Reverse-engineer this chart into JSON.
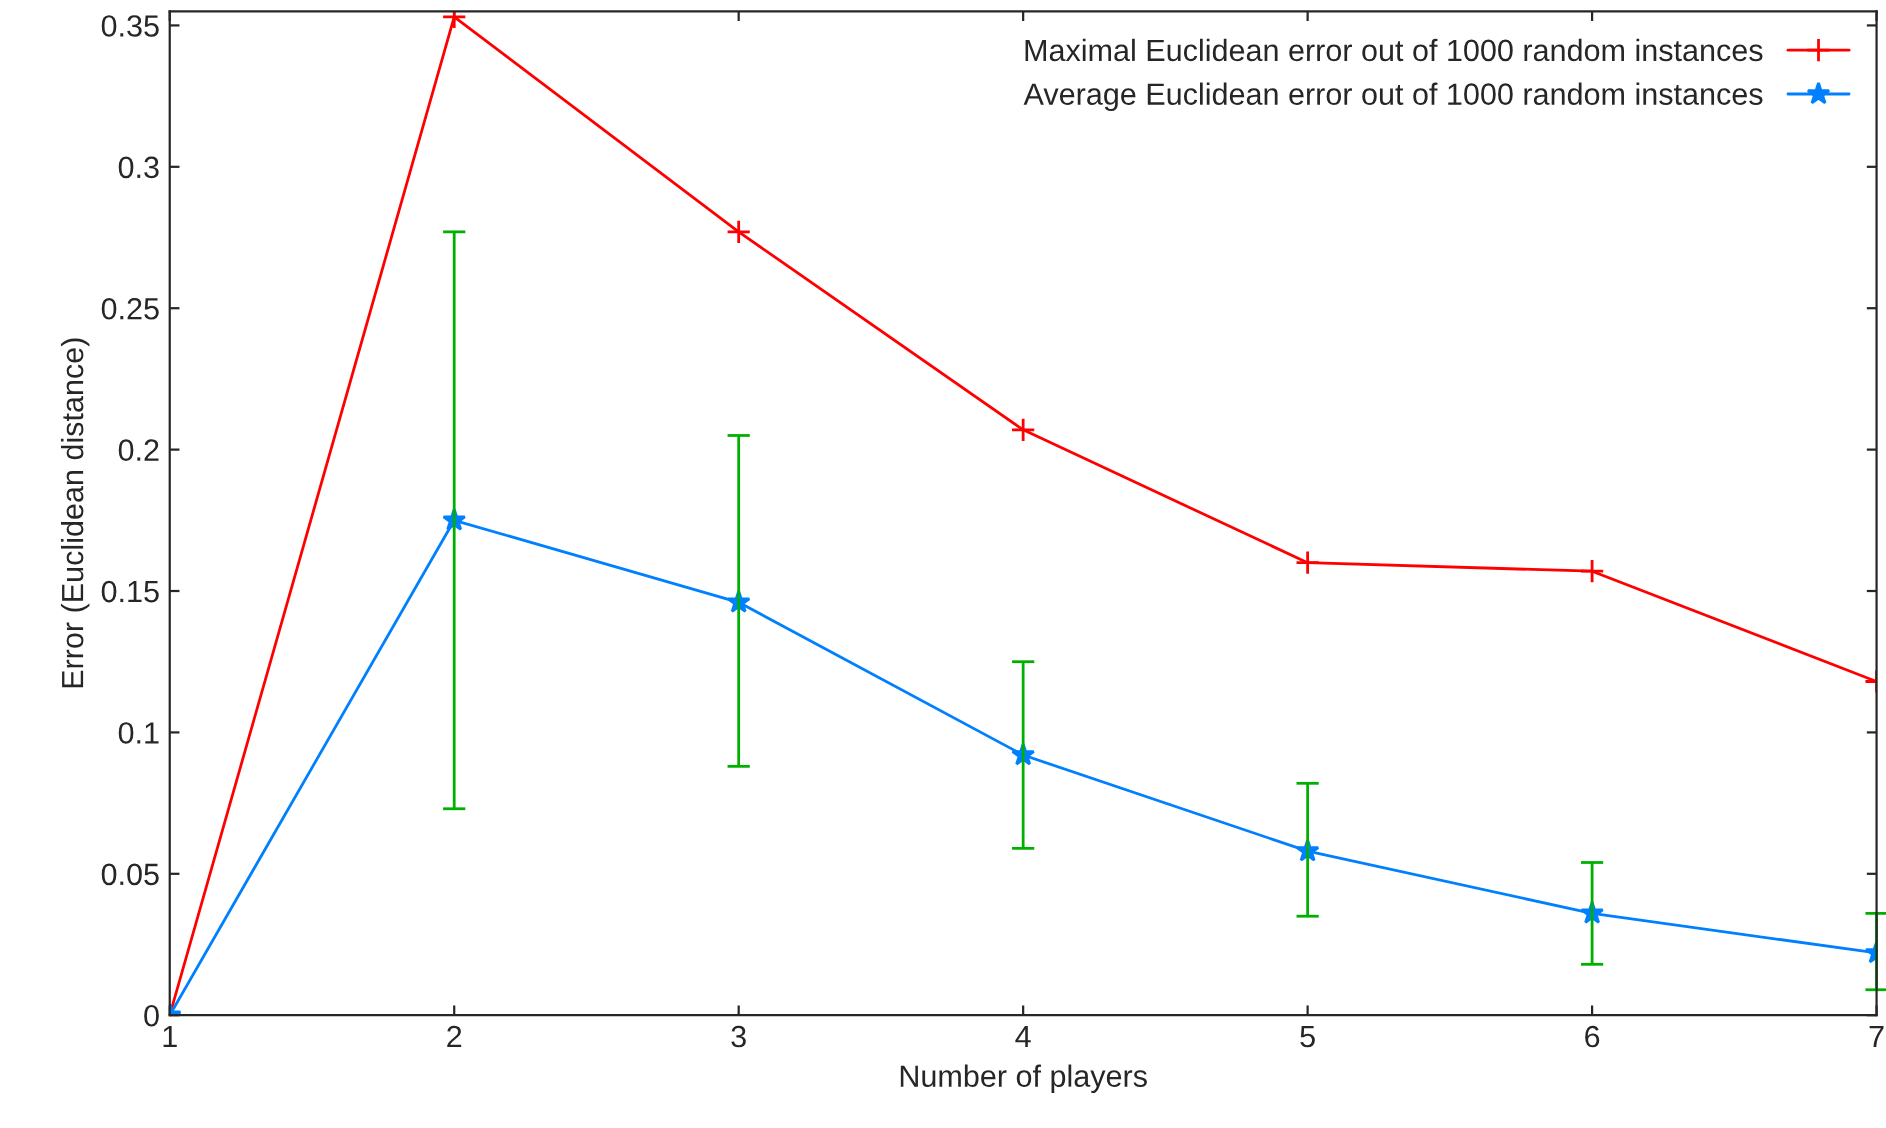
{
  "chart_data": {
    "type": "line",
    "xlabel": "Number of players",
    "ylabel": "Error (Euclidean distance)",
    "x": [
      1,
      2,
      3,
      4,
      5,
      6,
      7
    ],
    "series": [
      {
        "name": "Maximal Euclidean error out of 1000 random instances",
        "color": "#ff0000",
        "marker": "cross",
        "values": [
          0,
          0.353,
          0.277,
          0.207,
          0.16,
          0.157,
          0.118
        ]
      },
      {
        "name": "Average Euclidean error out of 1000 random instances",
        "color": "#0080ff",
        "marker": "star",
        "values": [
          0,
          0.175,
          0.146,
          0.092,
          0.058,
          0.036,
          0.022
        ],
        "errors": [
          null,
          [
            0.073,
            0.277
          ],
          [
            0.088,
            0.205
          ],
          [
            0.059,
            0.125
          ],
          [
            0.035,
            0.082
          ],
          [
            0.018,
            0.054
          ],
          [
            0.009,
            0.036
          ]
        ]
      }
    ],
    "xlim": [
      1,
      7
    ],
    "xticks": [
      1,
      2,
      3,
      4,
      5,
      6,
      7
    ],
    "ylim": [
      0,
      0.355
    ],
    "yticks": [
      0,
      0.05,
      0.1,
      0.15,
      0.2,
      0.25,
      0.3,
      0.35
    ],
    "grid": false,
    "legend": "top right"
  }
}
